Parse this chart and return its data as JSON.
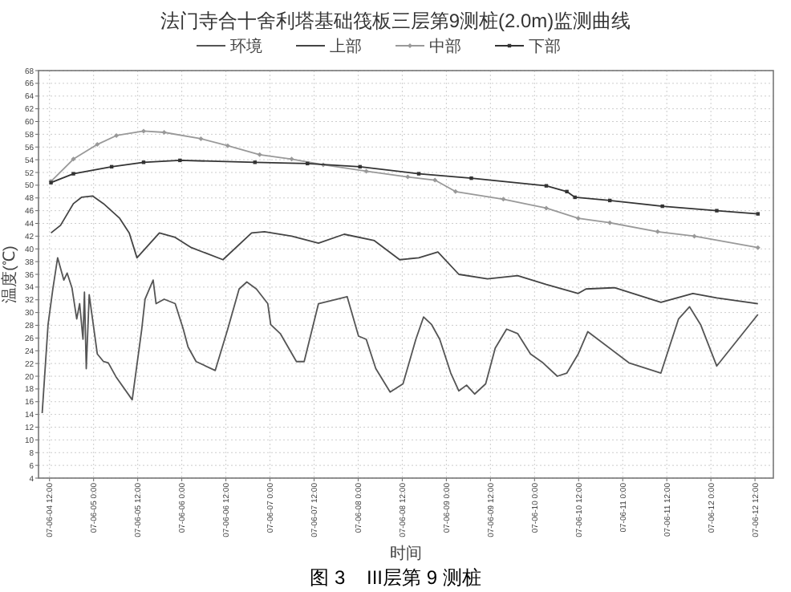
{
  "chart_data": {
    "type": "line",
    "title": "法门寺合十舍利塔基础筏板三层第9测桩(2.0m)监测曲线",
    "xlabel": "时间",
    "ylabel": "温度(℃)",
    "annotations": [
      "图 3    III层第 9 测桩"
    ],
    "xlim": [
      "--06-04T09:00",
      "--06-12T17:00"
    ],
    "ylim": [
      4,
      68
    ],
    "xticks": [
      {
        "value": "--06-04T12:00",
        "label": "07-06-04 12:00"
      },
      {
        "value": "--06-05T00:00",
        "label": "07-06-05 0:00"
      },
      {
        "value": "--06-05T12:00",
        "label": "07-06-05 12:00"
      },
      {
        "value": "--06-06T00:00",
        "label": "07-06-06 0:00"
      },
      {
        "value": "--06-06T12:00",
        "label": "07-06-06 12:00"
      },
      {
        "value": "--06-07T00:00",
        "label": "07-06-07 0:00"
      },
      {
        "value": "--06-07T12:00",
        "label": "07-06-07 12:00"
      },
      {
        "value": "--06-08T00:00",
        "label": "07-06-08 0:00"
      },
      {
        "value": "--06-08T12:00",
        "label": "07-06-08 12:00"
      },
      {
        "value": "--06-09T00:00",
        "label": "07-06-09 0:00"
      },
      {
        "value": "--06-09T12:00",
        "label": "07-06-09 12:00"
      },
      {
        "value": "--06-10T00:00",
        "label": "07-06-10 0:00"
      },
      {
        "value": "--06-10T12:00",
        "label": "07-06-10 12:00"
      },
      {
        "value": "--06-11T00:00",
        "label": "07-06-11 0:00"
      },
      {
        "value": "--06-11T12:00",
        "label": "07-06-11 12:00"
      },
      {
        "value": "--06-12T00:00",
        "label": "07-06-12 0:00"
      },
      {
        "value": "--06-12T12:00",
        "label": "07-06-12 12:00"
      }
    ],
    "yticks": [
      4,
      6,
      8,
      10,
      12,
      14,
      16,
      18,
      20,
      22,
      24,
      26,
      28,
      30,
      32,
      34,
      36,
      38,
      40,
      42,
      44,
      46,
      48,
      50,
      52,
      54,
      56,
      58,
      60,
      62,
      64,
      66,
      68
    ],
    "grid": true,
    "legend": "top",
    "series": [
      {
        "name": "环境",
        "color": "#555555",
        "marker": "none",
        "x": [
          "--06-04T10:00",
          "--06-04T11:36",
          "--06-04T12:54",
          "--06-04T14:12",
          "--06-04T15:54",
          "--06-04T16:48",
          "--06-04T18:06",
          "--06-04T19:24",
          "--06-04T20:12",
          "--06-04T21:06",
          "--06-04T21:30",
          "--06-04T22:00",
          "--06-04T22:48",
          "--06-04T23:42",
          "--06-05T01:00",
          "--06-05T02:42",
          "--06-05T04:00",
          "--06-05T06:12",
          "--06-05T10:30",
          "--06-05T13:06",
          "--06-05T14:00",
          "--06-05T16:12",
          "--06-05T17:00",
          "--06-05T19:12",
          "--06-05T22:12",
          "--06-06T00:24",
          "--06-06T01:42",
          "--06-06T03:54",
          "--06-06T09:06",
          "--06-06T12:30",
          "--06-06T15:36",
          "--06-06T17:42",
          "--06-06T20:18",
          "--06-06T23:24",
          "--06-07T00:12",
          "--06-07T02:48",
          "--06-07T07:12",
          "--06-07T09:18",
          "--06-07T13:12",
          "--06-07T21:00",
          "--06-08T00:06",
          "--06-08T02:12",
          "--06-08T04:48",
          "--06-08T08:42",
          "--06-08T12:12",
          "--06-08T15:42",
          "--06-08T17:48",
          "--06-08T20:00",
          "--06-08T22:12",
          "--06-09T01:12",
          "--06-09T03:24",
          "--06-09T05:30",
          "--06-09T07:42",
          "--06-09T10:42",
          "--06-09T13:18",
          "--06-09T16:24",
          "--06-09T19:24",
          "--06-09T22:54",
          "--06-10T02:18",
          "--06-10T06:12",
          "--06-10T08:48",
          "--06-10T11:54",
          "--06-10T14:30",
          "--06-11T01:42",
          "--06-11T10:24",
          "--06-11T12:36",
          "--06-11T15:12",
          "--06-11T18:12",
          "--06-11T21:12",
          "--06-12T01:36",
          "--06-12T12:48"
        ],
        "values": [
          14.2,
          28.1,
          33.7,
          38.6,
          35.1,
          36.2,
          33.9,
          29.0,
          31.4,
          25.8,
          33.2,
          21.2,
          32.8,
          29.0,
          23.5,
          22.3,
          22.1,
          19.8,
          16.3,
          27.4,
          32.1,
          35.1,
          31.4,
          32.1,
          31.4,
          27.4,
          24.6,
          22.3,
          20.9,
          27.4,
          33.7,
          34.8,
          33.7,
          31.4,
          28.1,
          26.7,
          22.3,
          22.3,
          31.4,
          32.5,
          26.3,
          25.8,
          21.2,
          17.5,
          18.8,
          25.8,
          29.3,
          28.1,
          25.8,
          20.5,
          17.7,
          18.6,
          17.2,
          18.8,
          24.4,
          27.4,
          26.7,
          23.5,
          22.1,
          20.0,
          20.5,
          23.5,
          27.0,
          22.1,
          20.5,
          24.4,
          29.0,
          30.9,
          28.1,
          21.6,
          29.7
        ]
      },
      {
        "name": "上部",
        "color": "#444444",
        "marker": "none",
        "x": [
          "--06-04T12:24",
          "--06-04T15:00",
          "--06-04T18:30",
          "--06-04T20:42",
          "--06-04T23:42",
          "--06-05T02:42",
          "--06-05T07:06",
          "--06-05T09:42",
          "--06-05T11:48",
          "--06-05T17:54",
          "--06-05T22:12",
          "--06-06T02:36",
          "--06-06T11:12",
          "--06-06T19:00",
          "--06-06T22:30",
          "--06-07T05:54",
          "--06-07T13:12",
          "--06-07T20:12",
          "--06-08T04:24",
          "--06-08T11:18",
          "--06-08T16:30",
          "--06-08T21:42",
          "--06-09T03:24",
          "--06-09T11:12",
          "--06-09T19:24",
          "--06-10T03:12",
          "--06-10T11:54",
          "--06-10T14:00",
          "--06-10T21:48",
          "--06-11T10:24",
          "--06-11T19:06",
          "--06-12T01:36",
          "--06-12T12:48"
        ],
        "values": [
          42.5,
          43.7,
          47.1,
          48.1,
          48.3,
          47.1,
          44.8,
          42.5,
          38.6,
          42.5,
          41.8,
          40.2,
          38.3,
          42.5,
          42.7,
          42.0,
          40.9,
          42.3,
          41.3,
          38.3,
          38.6,
          39.5,
          36.0,
          35.3,
          35.8,
          34.4,
          33.0,
          33.7,
          33.9,
          31.6,
          33.0,
          32.3,
          31.4
        ]
      },
      {
        "name": "中部",
        "color": "#999999",
        "marker": "diamond",
        "x": [
          "--06-04T12:24",
          "--06-04T18:30",
          "--06-05T01:00",
          "--06-05T06:12",
          "--06-05T13:36",
          "--06-05T19:12",
          "--06-06T05:12",
          "--06-06T12:30",
          "--06-06T21:12",
          "--06-07T05:54",
          "--06-07T14:30",
          "--06-08T02:12",
          "--06-08T13:30",
          "--06-08T20:54",
          "--06-09T02:30",
          "--06-09T15:30",
          "--06-10T03:12",
          "--06-10T11:54",
          "--06-10T20:30",
          "--06-11T09:30",
          "--06-11T19:30",
          "--06-12T12:48"
        ],
        "values": [
          50.6,
          54.1,
          56.4,
          57.8,
          58.5,
          58.3,
          57.3,
          56.2,
          54.8,
          54.1,
          53.2,
          52.2,
          51.3,
          50.8,
          49.0,
          47.8,
          46.4,
          44.8,
          44.1,
          42.7,
          42.0,
          40.2
        ]
      },
      {
        "name": "下部",
        "color": "#333333",
        "marker": "square",
        "x": [
          "--06-04T12:24",
          "--06-04T18:30",
          "--06-05T04:54",
          "--06-05T13:36",
          "--06-05T23:30",
          "--06-06T19:54",
          "--06-07T10:12",
          "--06-08T00:30",
          "--06-08T16:30",
          "--06-09T06:48",
          "--06-10T03:12",
          "--06-10T08:48",
          "--06-10T11:00",
          "--06-10T20:30",
          "--06-11T10:48",
          "--06-12T01:36",
          "--06-12T12:48"
        ],
        "values": [
          50.4,
          51.8,
          52.9,
          53.6,
          53.9,
          53.6,
          53.4,
          52.9,
          51.8,
          51.1,
          49.9,
          49.0,
          48.1,
          47.6,
          46.7,
          46.0,
          45.5
        ]
      }
    ]
  }
}
